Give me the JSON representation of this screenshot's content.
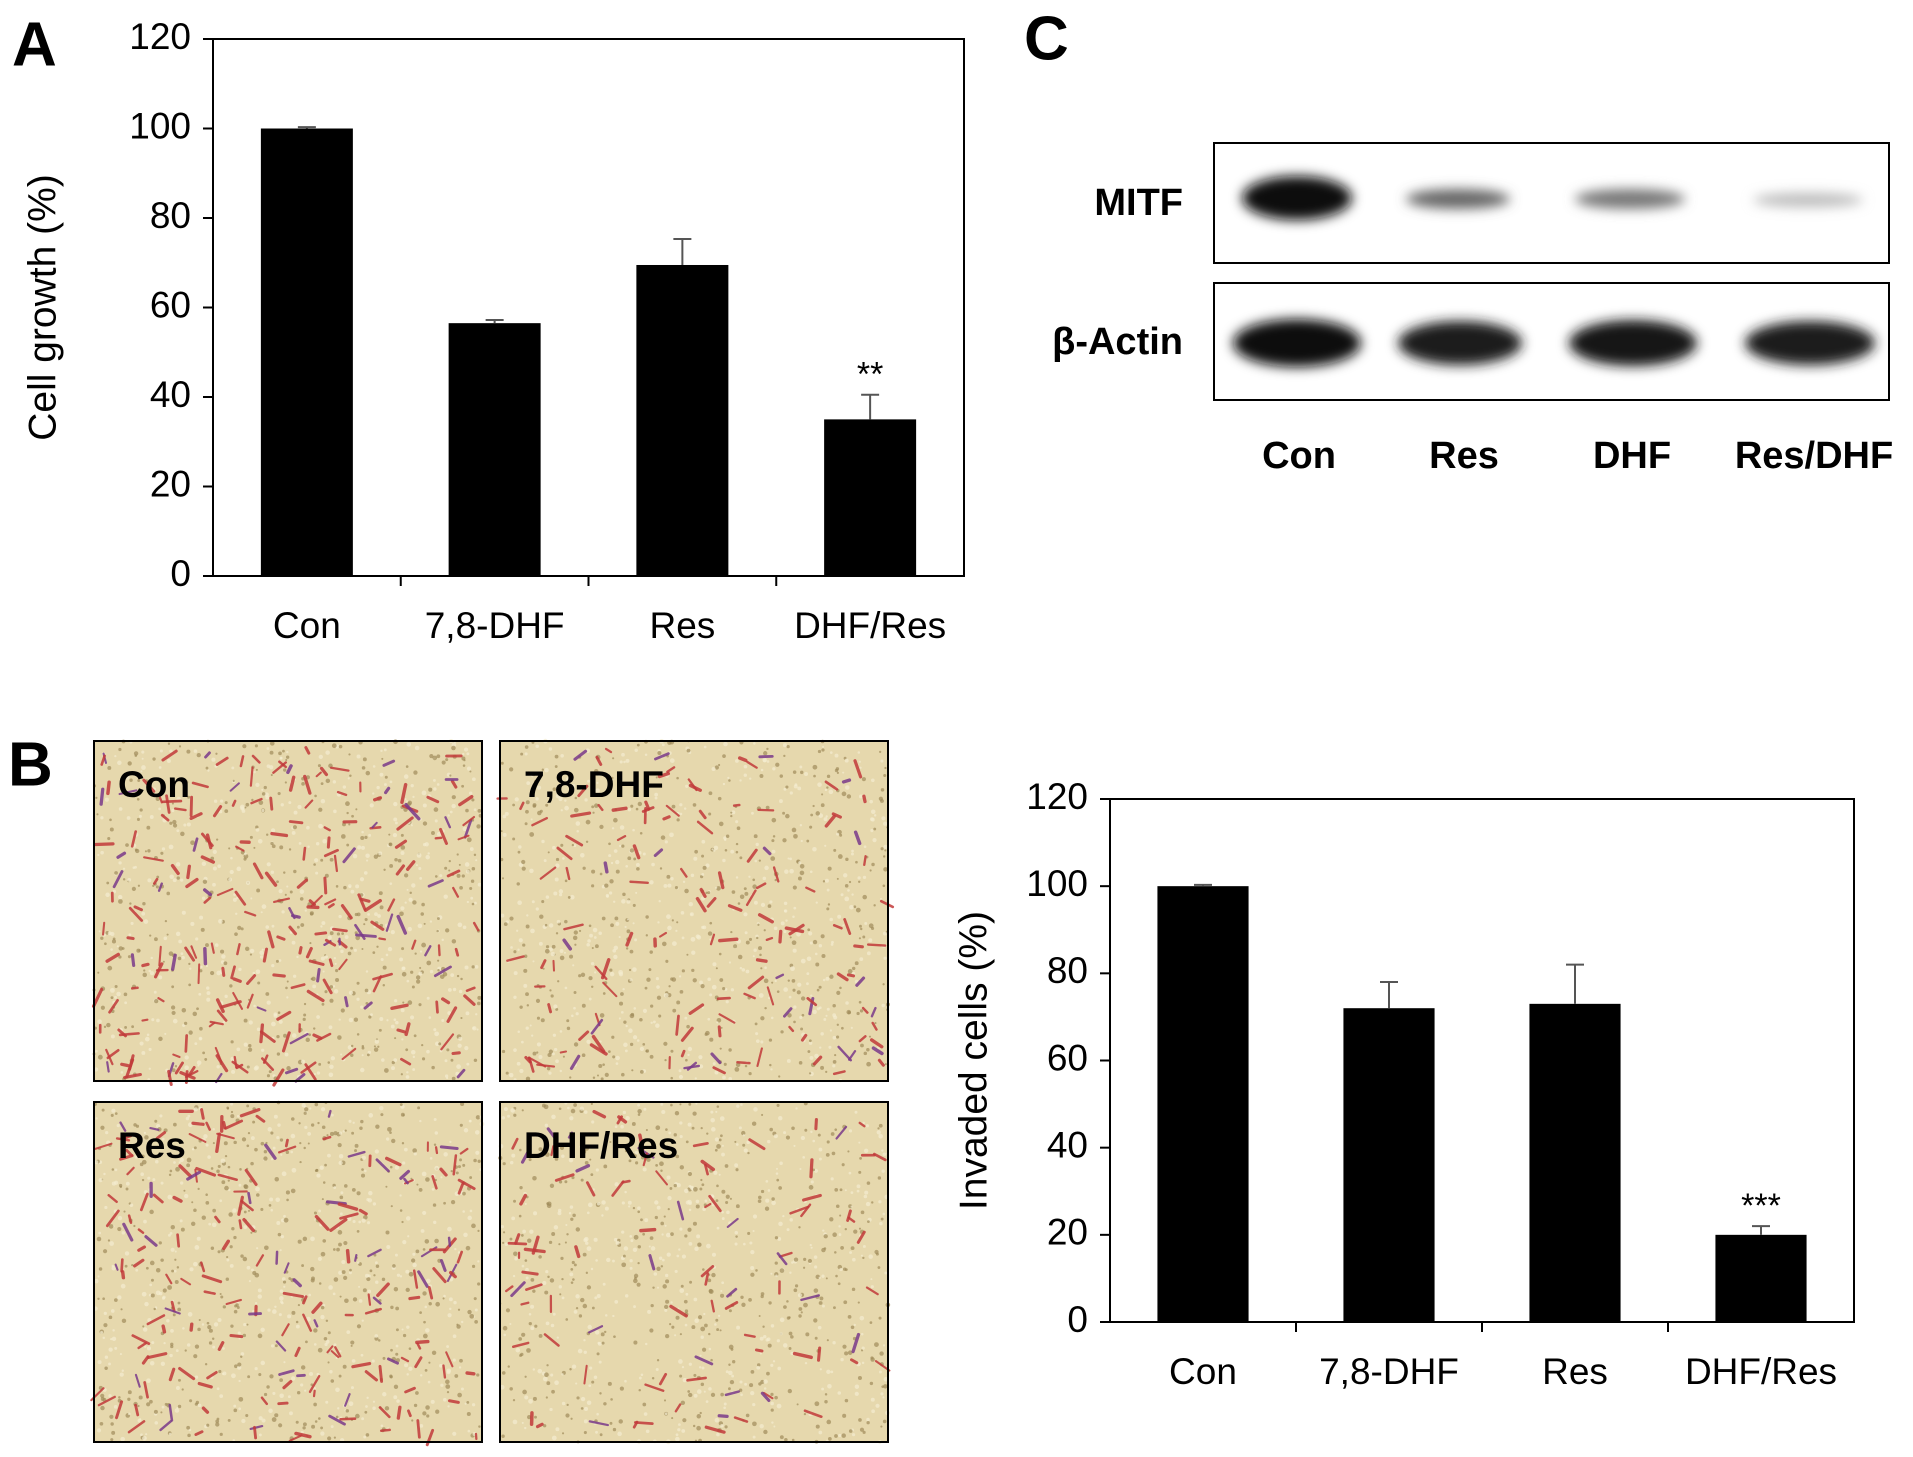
{
  "panel_labels": [
    "A",
    "B",
    "C"
  ],
  "chart_data": [
    {
      "type": "bar",
      "y_label": "Cell growth (%)",
      "categories": [
        "Con",
        "7,8-DHF",
        "Res",
        "DHF/Res"
      ],
      "values": [
        100,
        56.5,
        69.5,
        35
      ],
      "errors": [
        0.3,
        0.7,
        5.8,
        5.5
      ],
      "significance": [
        null,
        null,
        null,
        "**"
      ],
      "color": "#000000",
      "ylim": [
        0,
        120
      ],
      "yticks": [
        0,
        20,
        40,
        60,
        80,
        100,
        120
      ]
    },
    {
      "type": "bar",
      "y_label": "Invaded cells (%)",
      "categories": [
        "Con",
        "7,8-DHF",
        "Res",
        "DHF/Res"
      ],
      "values": [
        100,
        72,
        73,
        20
      ],
      "errors": [
        0.3,
        6,
        9,
        2
      ],
      "significance": [
        null,
        null,
        null,
        "***"
      ],
      "color": "#000000",
      "ylim": [
        0,
        120
      ],
      "yticks": [
        0,
        20,
        40,
        60,
        80,
        100,
        120
      ]
    }
  ],
  "micrographs": {
    "labels": [
      "Con",
      "7,8-DHF",
      "Res",
      "DHF/Res"
    ]
  },
  "western_blot": {
    "proteins": [
      "MITF",
      "β-Actin"
    ],
    "lanes": [
      "Con",
      "Res",
      "DHF",
      "Res/DHF"
    ]
  }
}
